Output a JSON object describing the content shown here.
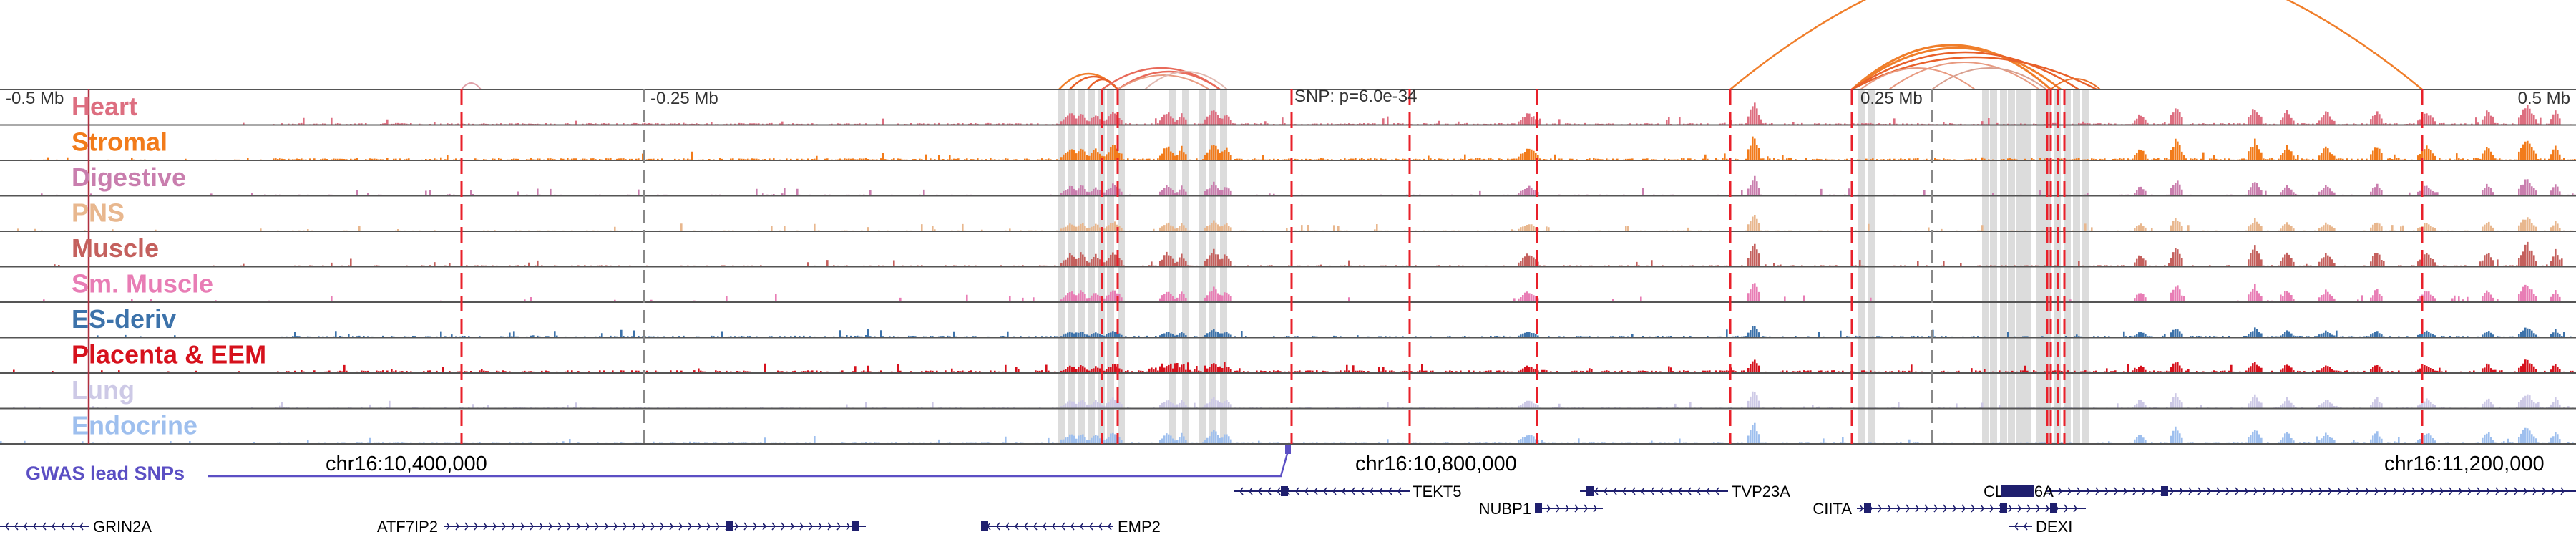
{
  "axis": {
    "left": "-0.5 Mb",
    "mid_left": "-0.25 Mb",
    "center": "SNP: p=6.0e-34",
    "mid_right": "0.25 Mb",
    "right": "0.5 Mb"
  },
  "coordinates": [
    "chr16:10,400,000",
    "chr16:10,800,000",
    "chr16:11,200,000"
  ],
  "gwas_label": "GWAS lead SNPs",
  "tracks": [
    {
      "label": "Heart",
      "color": "#dd6e80"
    },
    {
      "label": "Stromal",
      "color": "#f27b1a"
    },
    {
      "label": "Digestive",
      "color": "#c97eae"
    },
    {
      "label": "PNS",
      "color": "#e8b78e"
    },
    {
      "label": "Muscle",
      "color": "#c4605d"
    },
    {
      "label": "Sm. Muscle",
      "color": "#e87db5"
    },
    {
      "label": "ES-deriv",
      "color": "#3c72aa"
    },
    {
      "label": "Placenta & EEM",
      "color": "#d6111c"
    },
    {
      "label": "Lung",
      "color": "#cdc9e6"
    },
    {
      "label": "Endocrine",
      "color": "#9ebfee"
    }
  ],
  "genes": [
    {
      "name": "GRIN2A"
    },
    {
      "name": "ATF7IP2"
    },
    {
      "name": "EMP2"
    },
    {
      "name": "TEKT5"
    },
    {
      "name": "NUBP1"
    },
    {
      "name": "TVP23A"
    },
    {
      "name": "CIITA"
    },
    {
      "name": "CLEC16A"
    },
    {
      "name": "DEXI"
    }
  ],
  "colors": {
    "arc": "#f07e2a",
    "snp_line": "#e8202a",
    "gwas": "#5b4fc4",
    "gene": "#1f1f6e"
  }
}
